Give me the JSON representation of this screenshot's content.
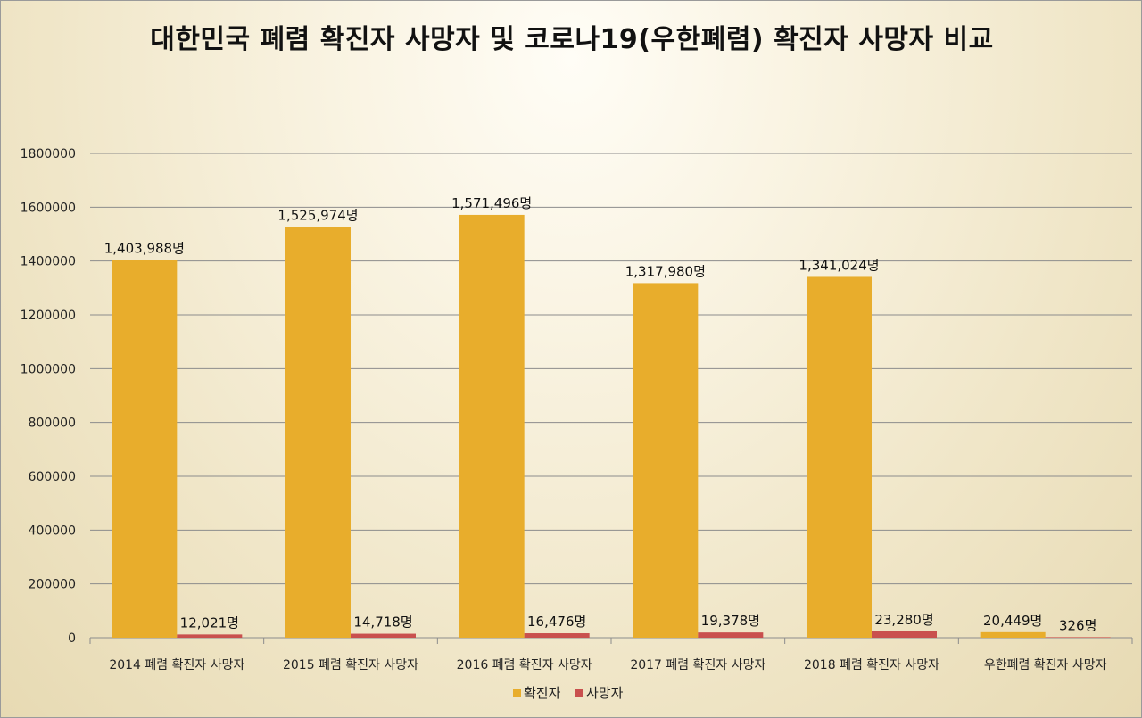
{
  "chart_data": {
    "type": "bar",
    "title": "대한민국 폐렴 확진자 사망자 및 코로나19(우한폐렴) 확진자 사망자 비교",
    "categories": [
      "2014 폐렴 확진자 사망자",
      "2015 폐렴 확진자 사망자",
      "2016 폐렴 확진자 사망자",
      "2017 폐렴 확진자 사망자",
      "2018 폐렴 확진자 사망자",
      "우한폐렴 확진자 사망자"
    ],
    "series": [
      {
        "name": "확진자",
        "color": "#e8ad2c",
        "values": [
          1403988,
          1525974,
          1571496,
          1317980,
          1341024,
          20449
        ],
        "labels": [
          "1,403,988명",
          "1,525,974명",
          "1,571,496명",
          "1,317,980명",
          "1,341,024명",
          "20,449명"
        ]
      },
      {
        "name": "사망자",
        "color": "#c9504e",
        "values": [
          12021,
          14718,
          16476,
          19378,
          23280,
          326
        ],
        "labels": [
          "12,021명",
          "14,718명",
          "16,476명",
          "19,378명",
          "23,280명",
          "326명"
        ]
      }
    ],
    "yticks": [
      "0",
      "200000",
      "400000",
      "600000",
      "800000",
      "1000000",
      "1200000",
      "1400000",
      "1600000",
      "1800000"
    ],
    "ylim": [
      0,
      1800000
    ],
    "xlabel": "",
    "ylabel": "",
    "grid": true,
    "legend_position": "bottom"
  }
}
